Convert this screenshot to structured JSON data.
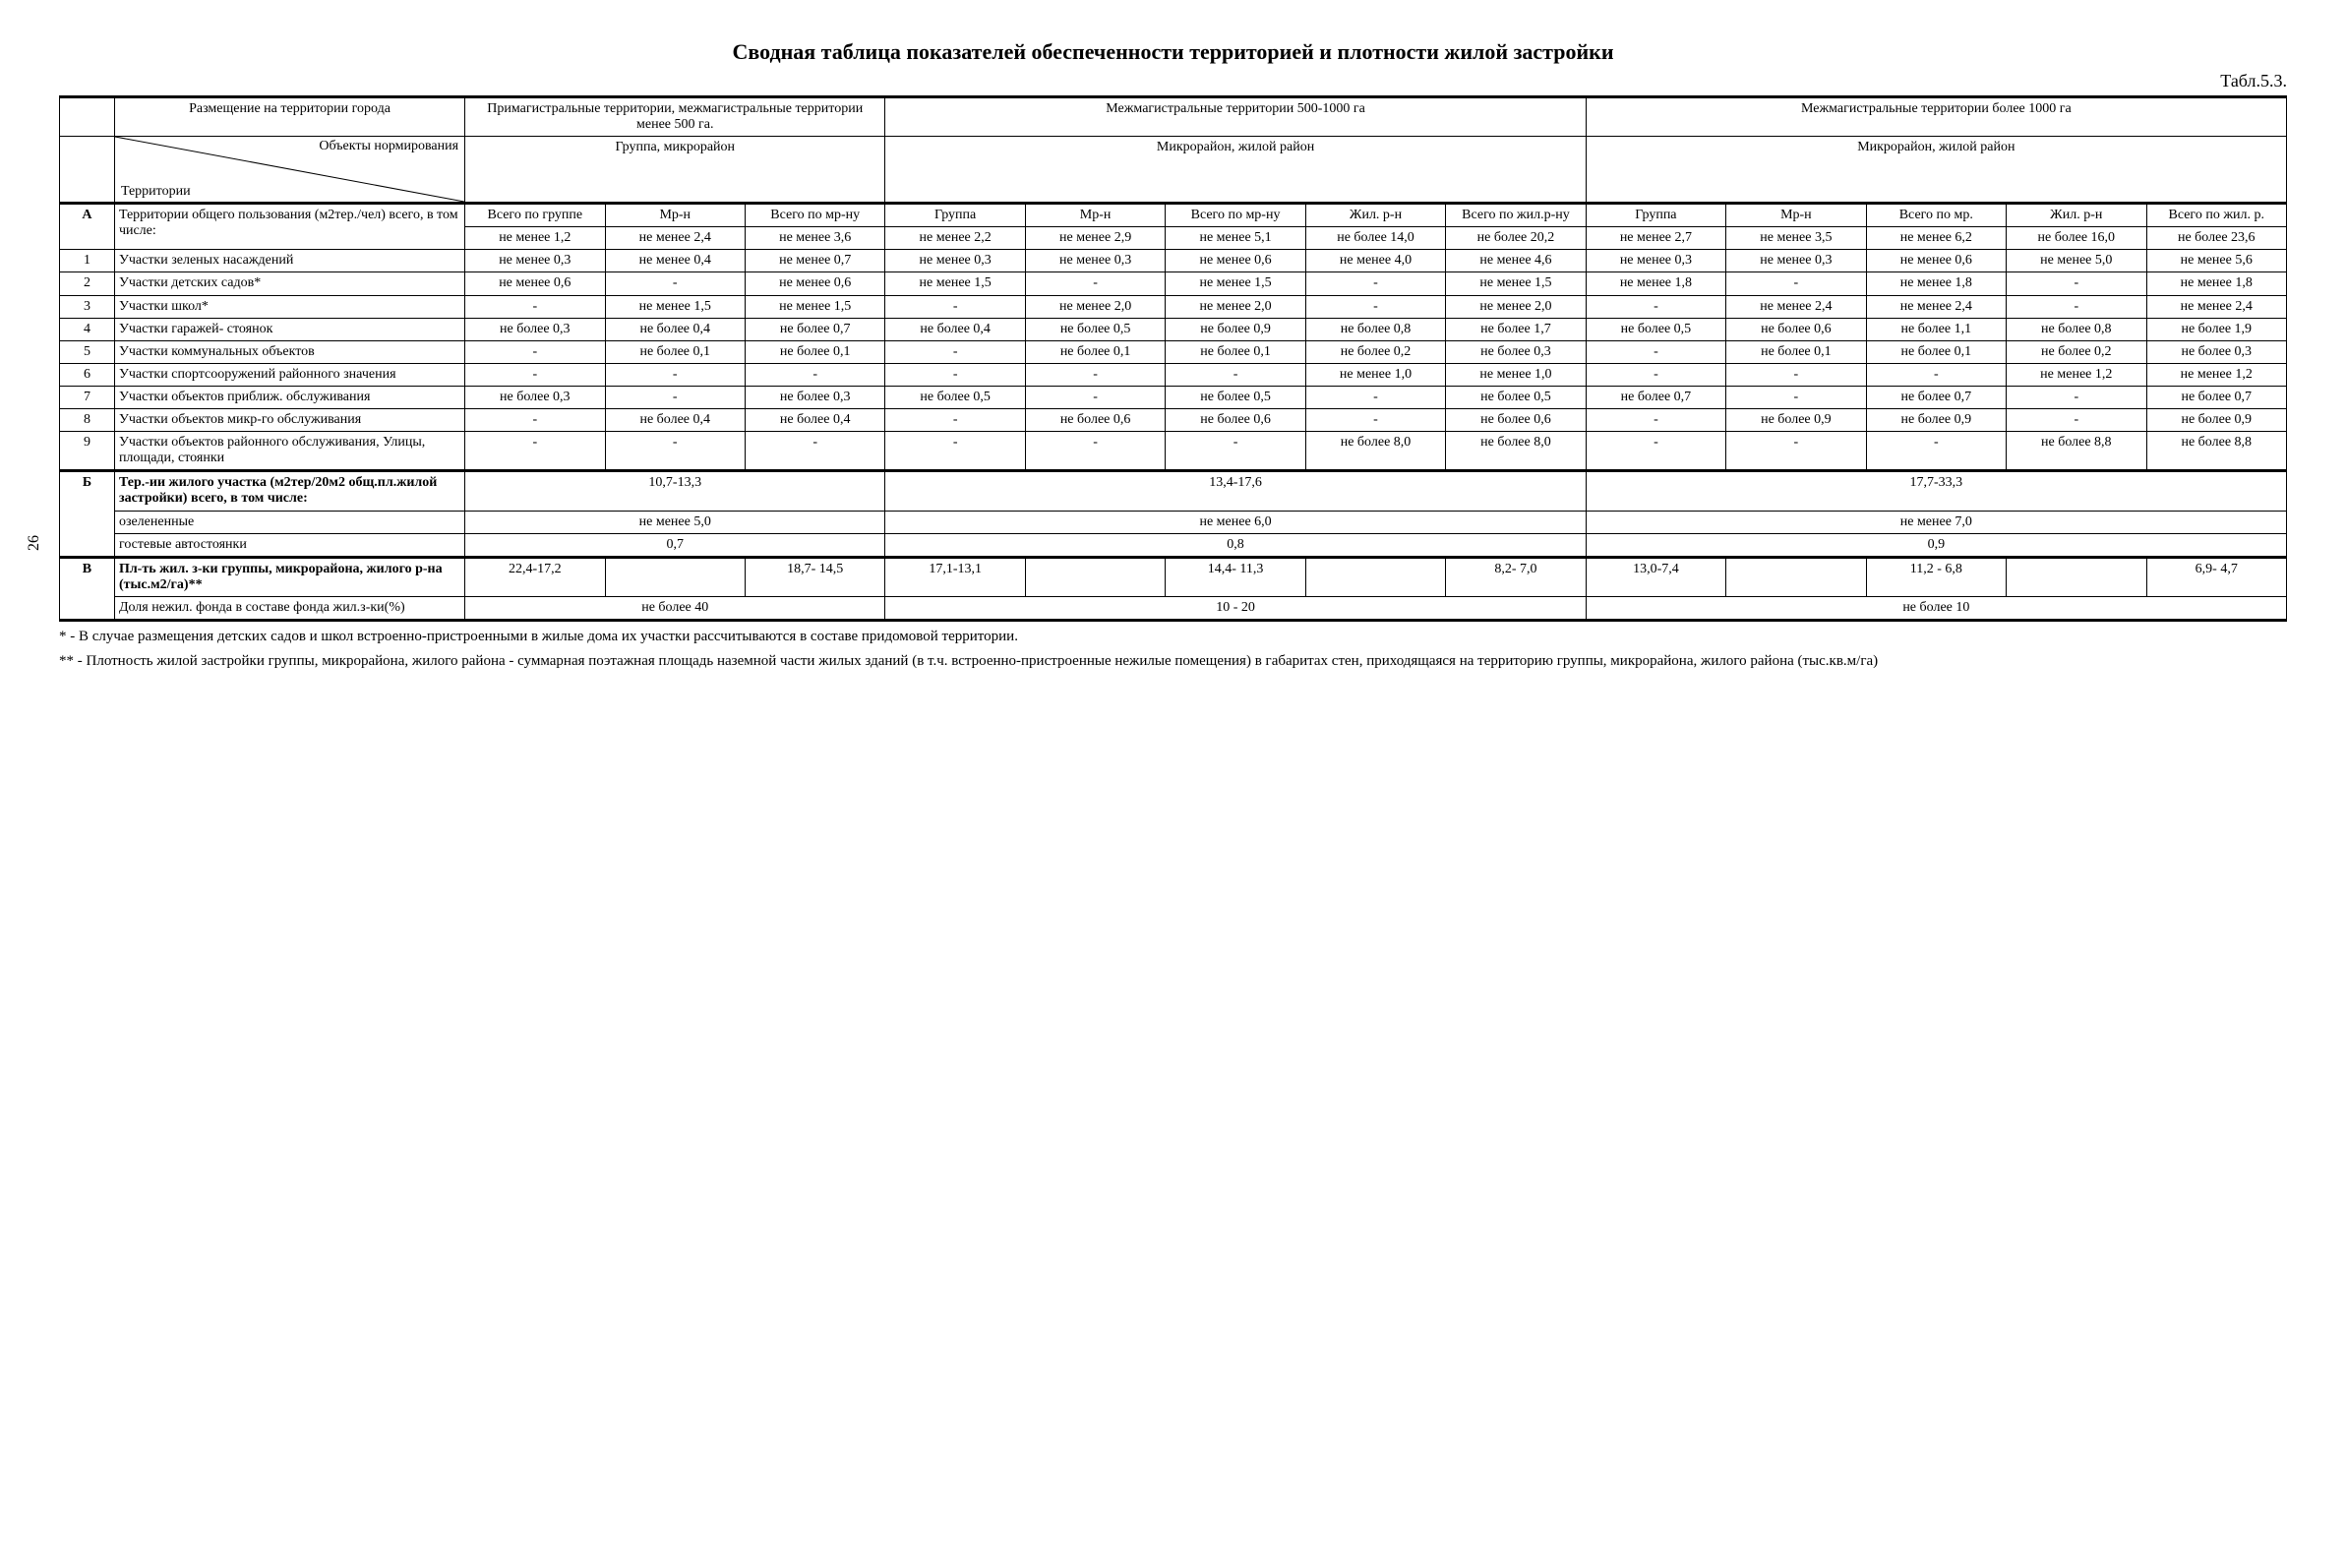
{
  "title": "Сводная таблица показателей обеспеченности территорией и плотности жилой застройки",
  "table_label": "Табл.5.3.",
  "page_number": "26",
  "header": {
    "top": {
      "placement": "Размещение на территории города",
      "zone1": "Примагистральные территории, межмагистральные территории менее 500 га.",
      "zone2": "Межмагистральные территории 500-1000 га",
      "zone3": "Межмагистральные территории более 1000 га"
    },
    "diag_top": "Объекты нормирования",
    "diag_bot": "Территории",
    "sub1": "Группа, микрорайон",
    "sub2": "Микрорайон, жилой район",
    "sub3": "Микрорайон, жилой район"
  },
  "colA": {
    "z1": [
      "Всего по группе",
      "Мр-н",
      "Всего по мр-ну"
    ],
    "z2": [
      "Группа",
      "Мр-н",
      "Всего по мр-ну",
      "Жил. р-н",
      "Всего по жил.р-ну"
    ],
    "z3": [
      "Группа",
      "Мр-н",
      "Всего по мр.",
      "Жил. р-н",
      "Всего по жил. р."
    ]
  },
  "rowA_label": "Территории общего пользования (м2тер./чел) всего,\nв том числе:",
  "rowA_idx": "А",
  "rowA": {
    "z1": [
      "не менее 1,2",
      "не менее 2,4",
      "не менее 3,6"
    ],
    "z2": [
      "не менее 2,2",
      "не менее 2,9",
      "не менее 5,1",
      "не более 14,0",
      "не более 20,2"
    ],
    "z3": [
      "не менее 2,7",
      "не менее 3,5",
      "не менее 6,2",
      "не более 16,0",
      "не более 23,6"
    ]
  },
  "rows": [
    {
      "idx": "1",
      "label": "Участки зеленых насаждений",
      "z1": [
        "не менее 0,3",
        "не менее 0,4",
        "не менее 0,7"
      ],
      "z2": [
        "не менее 0,3",
        "не менее 0,3",
        "не менее 0,6",
        "не менее 4,0",
        "не менее 4,6"
      ],
      "z3": [
        "не менее 0,3",
        "не менее 0,3",
        "не менее 0,6",
        "не менее 5,0",
        "не менее 5,6"
      ]
    },
    {
      "idx": "2",
      "label": "Участки детских садов*",
      "z1": [
        "не менее 0,6",
        "-",
        "не менее 0,6"
      ],
      "z2": [
        "не менее 1,5",
        "-",
        "не менее 1,5",
        "-",
        "не менее 1,5"
      ],
      "z3": [
        "не менее 1,8",
        "-",
        "не менее 1,8",
        "-",
        "не менее 1,8"
      ]
    },
    {
      "idx": "3",
      "label": "Участки школ*",
      "z1": [
        "-",
        "не менее 1,5",
        "не менее 1,5"
      ],
      "z2": [
        "-",
        "не менее 2,0",
        "не менее 2,0",
        "-",
        "не менее 2,0"
      ],
      "z3": [
        "-",
        "не менее 2,4",
        "не менее 2,4",
        "-",
        "не менее 2,4"
      ]
    },
    {
      "idx": "4",
      "label": "Участки гаражей- стоянок",
      "z1": [
        "не более 0,3",
        "не более 0,4",
        "не более 0,7"
      ],
      "z2": [
        "не более 0,4",
        "не более 0,5",
        "не более 0,9",
        "не более 0,8",
        "не более 1,7"
      ],
      "z3": [
        "не более 0,5",
        "не более 0,6",
        "не более 1,1",
        "не более 0,8",
        "не более 1,9"
      ]
    },
    {
      "idx": "5",
      "label": "Участки коммунальных объектов",
      "z1": [
        "-",
        "не более 0,1",
        "не более 0,1"
      ],
      "z2": [
        "-",
        "не более 0,1",
        "не более 0,1",
        "не более 0,2",
        "не более 0,3"
      ],
      "z3": [
        "-",
        "не более 0,1",
        "не более 0,1",
        "не более 0,2",
        "не более 0,3"
      ]
    },
    {
      "idx": "6",
      "label": "Участки спортсооружений районного значения",
      "z1": [
        "-",
        "-",
        "-"
      ],
      "z2": [
        "-",
        "-",
        "-",
        "не менее 1,0",
        "не менее 1,0"
      ],
      "z3": [
        "-",
        "-",
        "-",
        "не менее 1,2",
        "не менее 1,2"
      ]
    },
    {
      "idx": "7",
      "label": "Участки объектов приближ. обслуживания",
      "z1": [
        "не более 0,3",
        "-",
        "не более 0,3"
      ],
      "z2": [
        "не более 0,5",
        "-",
        "не более 0,5",
        "-",
        "не более 0,5"
      ],
      "z3": [
        "не более 0,7",
        "-",
        "не более 0,7",
        "-",
        "не более 0,7"
      ]
    },
    {
      "idx": "8",
      "label": "Участки объектов микр-го обслуживания",
      "z1": [
        "-",
        "не более 0,4",
        "не более 0,4"
      ],
      "z2": [
        "-",
        "не более 0,6",
        "не более 0,6",
        "-",
        "не более 0,6"
      ],
      "z3": [
        "-",
        "не более 0,9",
        "не более 0,9",
        "-",
        "не более 0,9"
      ]
    },
    {
      "idx": "9",
      "label": "Участки объектов районного обслуживания, Улицы, площади, стоянки",
      "z1": [
        "-",
        "-",
        "-"
      ],
      "z2": [
        "-",
        "-",
        "-",
        "не более 8,0",
        "не более 8,0"
      ],
      "z3": [
        "-",
        "-",
        "-",
        "не более 8,8",
        "не более 8,8"
      ]
    }
  ],
  "sectionB": {
    "idx": "Б",
    "label": "Тер.-ии жилого участка (м2тер/20м2 общ.пл.жилой застройки) всего, в том числе:",
    "z1": "10,7-13,3",
    "z2": "13,4-17,6",
    "z3": "17,7-33,3",
    "green_label": "озелененные",
    "green": [
      "не менее 5,0",
      "не менее 6,0",
      "не менее 7,0"
    ],
    "guest_label": "гостевые автостоянки",
    "guest": [
      "0,7",
      "0,8",
      "0,9"
    ]
  },
  "sectionV": {
    "idx": "В",
    "label": "Пл-ть жил. з-ки группы, микрорайона, жилого р-на (тыс.м2/га)**",
    "z1": [
      "22,4-17,2",
      "",
      "18,7- 14,5"
    ],
    "z2": [
      "17,1-13,1",
      "",
      "14,4- 11,3",
      "",
      "8,2- 7,0"
    ],
    "z3": [
      "13,0-7,4",
      "",
      "11,2 - 6,8",
      "",
      "6,9- 4,7"
    ],
    "share_label": "Доля нежил. фонда в составе фонда жил.з-ки(%)",
    "share": [
      "не более 40",
      "10 - 20",
      "не более 10"
    ]
  },
  "footnotes": [
    "* - В случае размещения детских садов и школ встроенно-пристроенными в жилые дома их участки рассчитываются в составе придомовой территории.",
    "** - Плотность жилой застройки группы, микрорайона, жилого района - суммарная поэтажная площадь наземной части жилых зданий (в т.ч. встроенно-пристроенные нежилые помещения) в габаритах стен, приходящаяся на территорию группы, микрорайона, жилого района (тыс.кв.м/га)"
  ]
}
